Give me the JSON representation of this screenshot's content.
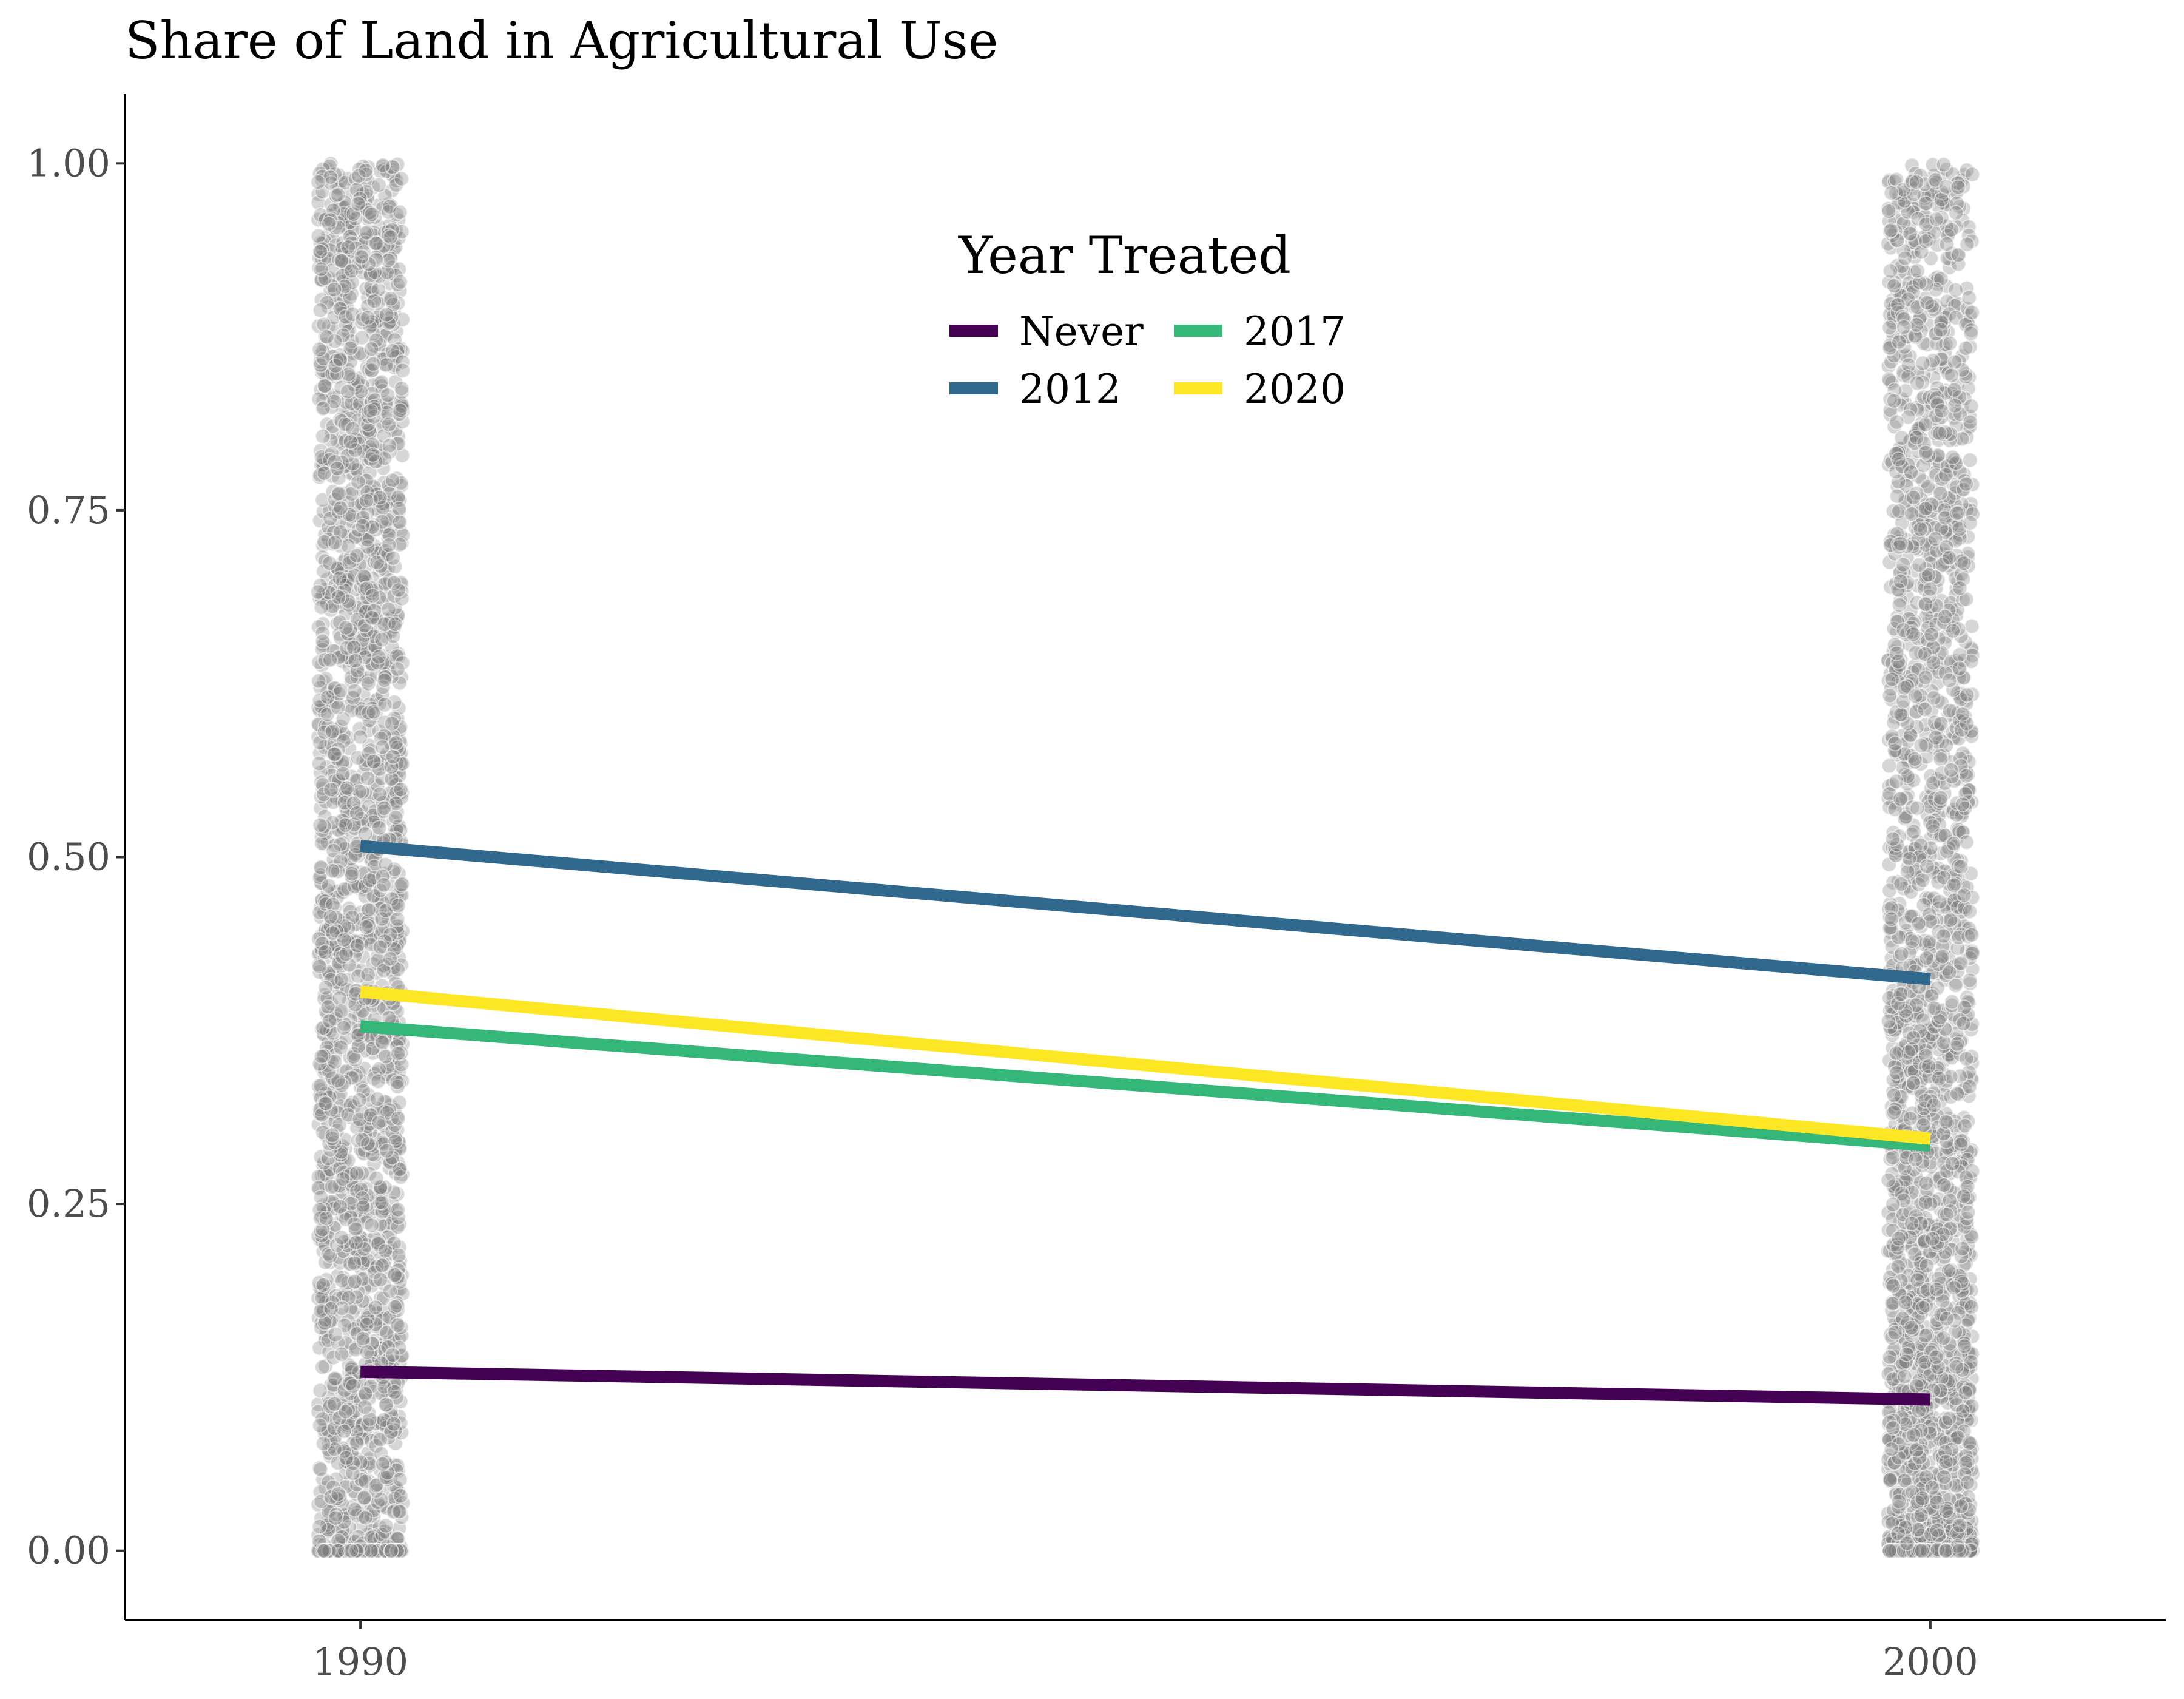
{
  "chart_data": {
    "type": "line",
    "title": "Share of Land in Agricultural Use",
    "xlabel": "",
    "ylabel": "",
    "x": [
      1990,
      2000
    ],
    "x_tick_labels": [
      "1990",
      "2000"
    ],
    "y_tick_labels": [
      "0.00",
      "0.25",
      "0.50",
      "0.75",
      "1.00"
    ],
    "ylim": [
      -0.05,
      1.05
    ],
    "grid": false,
    "legend": {
      "title": "Year Treated",
      "placement": "top-center",
      "columns": 2
    },
    "series": [
      {
        "name": "Never",
        "color": "#440154",
        "values": [
          0.129,
          0.109
        ]
      },
      {
        "name": "2012",
        "color": "#31688E",
        "values": [
          0.508,
          0.412
        ]
      },
      {
        "name": "2017",
        "color": "#35B779",
        "values": [
          0.378,
          0.292
        ]
      },
      {
        "name": "2020",
        "color": "#FDE725",
        "values": [
          0.403,
          0.297
        ]
      }
    ],
    "scatter": {
      "description": "jittered individual observations",
      "color": "#808080",
      "groups": [
        {
          "x": 1990,
          "y_range": [
            0.0,
            1.0
          ]
        },
        {
          "x": 2000,
          "y_range": [
            0.0,
            1.0
          ]
        }
      ]
    }
  }
}
